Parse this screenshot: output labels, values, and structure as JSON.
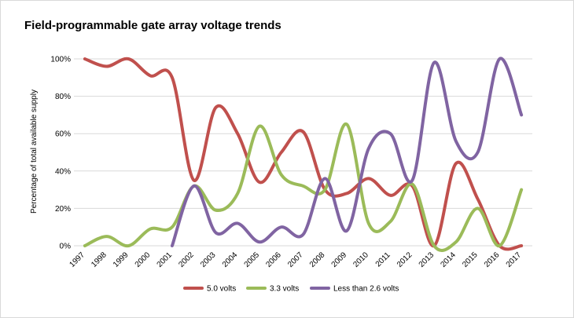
{
  "chart_data": {
    "type": "line",
    "title": "Field-programmable gate array voltage trends",
    "xlabel": "",
    "ylabel": "Percentage of total available supply",
    "ylim": [
      0,
      100
    ],
    "yticks": [
      0,
      20,
      40,
      60,
      80,
      100
    ],
    "ytick_labels": [
      "0%",
      "20%",
      "40%",
      "60%",
      "80%",
      "100%"
    ],
    "grid": true,
    "smooth": true,
    "legend_position": "bottom",
    "categories": [
      "1997",
      "1998",
      "1999",
      "2000",
      "2001",
      "2002",
      "2003",
      "2004",
      "2005",
      "2006",
      "2007",
      "2008",
      "2009",
      "2010",
      "2011",
      "2012",
      "2013",
      "2014",
      "2015",
      "2016",
      "2017"
    ],
    "series": [
      {
        "name": "5.0 volts",
        "color": "#c0504d",
        "values": [
          100,
          96,
          100,
          91,
          90,
          35,
          74,
          60,
          34,
          50,
          61,
          30,
          28,
          36,
          27,
          32,
          0,
          44,
          25,
          0,
          0
        ]
      },
      {
        "name": "3.3 volts",
        "color": "#9bbb59",
        "values": [
          0,
          5,
          0,
          9,
          10,
          32,
          19,
          28,
          64,
          38,
          32,
          30,
          65,
          12,
          13,
          33,
          0,
          2,
          20,
          0,
          30
        ]
      },
      {
        "name": "Less than 2.6 volts",
        "color": "#8064a2",
        "values": [
          null,
          null,
          null,
          null,
          0,
          32,
          7,
          12,
          2,
          10,
          6,
          36,
          8,
          52,
          60,
          35,
          98,
          56,
          50,
          100,
          70
        ]
      }
    ]
  }
}
